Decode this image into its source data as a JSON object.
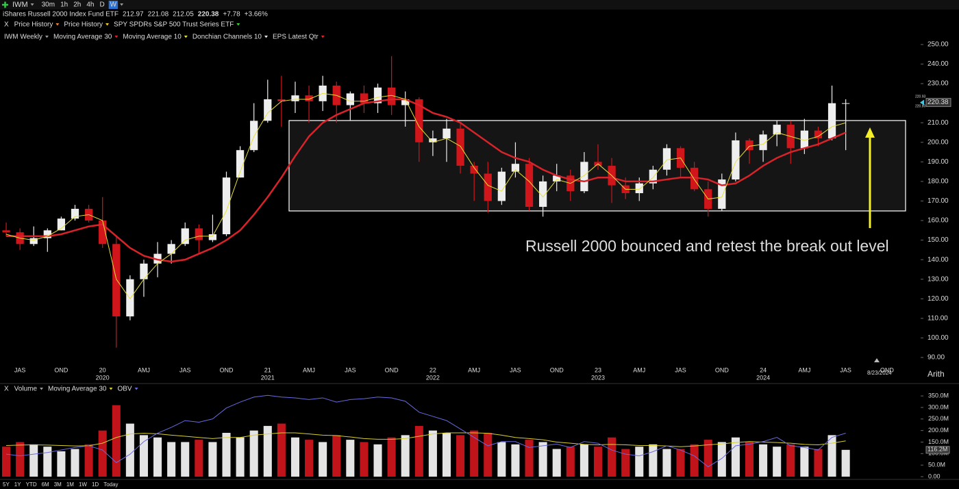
{
  "toolbar": {
    "symbol": "IWM",
    "intervals": [
      "30m",
      "1h",
      "2h",
      "4h",
      "D",
      "W"
    ]
  },
  "quote": {
    "name": "iShares Russell 2000 Index Fund ETF",
    "open": "212.97",
    "high": "221.08",
    "low": "212.05",
    "last": "220.38",
    "change": "+7.78",
    "change_pct": "+3.66%"
  },
  "overlays": {
    "close": "X",
    "items": [
      "Price History",
      "Price History",
      "SPY SPDRs S&P 500 Trust Series ETF"
    ]
  },
  "chart_data": [
    {
      "type": "candlestick",
      "title": "IWM Weekly",
      "categories": [
        null,
        null,
        null,
        null,
        null,
        null,
        null,
        null,
        null,
        null,
        null,
        null,
        null,
        null,
        null,
        null,
        null,
        null,
        null,
        null,
        null,
        null,
        null,
        null,
        null,
        null,
        null,
        null,
        null,
        null,
        null,
        null,
        null,
        null,
        null,
        null,
        null,
        null,
        null,
        null,
        null,
        null,
        null,
        null,
        null,
        null,
        null,
        null,
        null,
        null,
        null,
        null,
        null,
        null,
        null,
        null,
        null,
        null,
        null,
        null,
        null,
        null
      ],
      "open": [
        155,
        154,
        148,
        151,
        155,
        161,
        166,
        160,
        148,
        111,
        130,
        138,
        143,
        148,
        156,
        150,
        153,
        182,
        196,
        211,
        222,
        221,
        224,
        221,
        229,
        219,
        225,
        220,
        228,
        219,
        222,
        200,
        202,
        207,
        188,
        184,
        170,
        185,
        189,
        167,
        180,
        183,
        175,
        190,
        188,
        178,
        174,
        179,
        186,
        197,
        187,
        176,
        166,
        181,
        201,
        196,
        204,
        209,
        197,
        206,
        202,
        220
      ],
      "high": [
        159,
        156,
        157,
        156,
        162,
        168,
        168,
        172,
        152,
        132,
        140,
        149,
        150,
        159,
        158,
        163,
        185,
        198,
        220,
        232,
        234,
        231,
        229,
        234,
        231,
        226,
        229,
        230,
        244,
        226,
        223,
        206,
        212,
        210,
        190,
        190,
        187,
        200,
        192,
        183,
        189,
        186,
        195,
        199,
        192,
        182,
        182,
        188,
        199,
        198,
        190,
        180,
        184,
        205,
        202,
        206,
        211,
        211,
        212,
        208,
        229,
        222
      ],
      "low": [
        152,
        145,
        147,
        144,
        155,
        160,
        159,
        146,
        95,
        109,
        121,
        131,
        138,
        147,
        143,
        149,
        152,
        182,
        195,
        210,
        208,
        215,
        210,
        216,
        210,
        211,
        215,
        215,
        214,
        208,
        190,
        193,
        190,
        184,
        170,
        164,
        168,
        182,
        165,
        162,
        175,
        170,
        174,
        186,
        169,
        171,
        170,
        176,
        183,
        182,
        175,
        162,
        165,
        180,
        189,
        190,
        198,
        189,
        194,
        198,
        201,
        196
      ],
      "close": [
        154,
        148,
        151,
        155,
        161,
        166,
        160,
        148,
        111,
        130,
        138,
        143,
        148,
        156,
        150,
        153,
        182,
        196,
        211,
        222,
        221,
        224,
        221,
        229,
        219,
        225,
        220,
        228,
        219,
        222,
        200,
        202,
        207,
        188,
        184,
        170,
        185,
        189,
        167,
        180,
        183,
        175,
        190,
        188,
        178,
        174,
        179,
        186,
        197,
        187,
        176,
        166,
        181,
        201,
        196,
        204,
        209,
        197,
        206,
        202,
        220,
        220
      ],
      "up_color": "#eeeeee",
      "down_color": "#d0161b",
      "series": [
        {
          "name": "Moving Average 30",
          "color": "#d8232a",
          "values": [
            152,
            152,
            152,
            152,
            153,
            155,
            157,
            158,
            152,
            146,
            142,
            140,
            139,
            140,
            143,
            146,
            150,
            155,
            163,
            172,
            182,
            193,
            203,
            210,
            214,
            217,
            220,
            221,
            222,
            222,
            219,
            215,
            213,
            210,
            205,
            200,
            195,
            192,
            190,
            186,
            183,
            181,
            180,
            182,
            182,
            180,
            180,
            180,
            181,
            182,
            182,
            181,
            178,
            179,
            183,
            188,
            192,
            195,
            197,
            199,
            202,
            205
          ]
        },
        {
          "name": "Moving Average 10",
          "color": "#e8e03a",
          "values": [
            153,
            151,
            150,
            152,
            156,
            162,
            163,
            160,
            130,
            120,
            130,
            138,
            143,
            150,
            152,
            152,
            165,
            185,
            203,
            215,
            221,
            222,
            222,
            225,
            224,
            221,
            221,
            223,
            224,
            222,
            208,
            200,
            202,
            198,
            187,
            178,
            175,
            186,
            180,
            172,
            181,
            179,
            183,
            189,
            183,
            176,
            176,
            182,
            191,
            192,
            181,
            171,
            172,
            190,
            198,
            199,
            205,
            203,
            201,
            203,
            208,
            210
          ]
        }
      ],
      "studies": [
        {
          "name": "Donchian Channels 10",
          "color": "#e6e6e6"
        },
        {
          "name": "EPS Latest Qtr",
          "color": "#e0262b"
        }
      ],
      "xlim": [
        -0.45,
        64.9
      ],
      "ylim": [
        87,
        257
      ],
      "yticks": [
        {
          "value": 90,
          "label": "90.00"
        },
        {
          "value": 100,
          "label": "100.00"
        },
        {
          "value": 110,
          "label": "110.00"
        },
        {
          "value": 120,
          "label": "120.00"
        },
        {
          "value": 130,
          "label": "130.00"
        },
        {
          "value": 140,
          "label": "140.00"
        },
        {
          "value": 150,
          "label": "150.00"
        },
        {
          "value": 160,
          "label": "160.00"
        },
        {
          "value": 170,
          "label": "170.00"
        },
        {
          "value": 180,
          "label": "180.00"
        },
        {
          "value": 190,
          "label": "190.00"
        },
        {
          "value": 200,
          "label": "200.00"
        },
        {
          "value": 210,
          "label": "210.00"
        },
        {
          "value": 220,
          "label": "220.00"
        },
        {
          "value": 230,
          "label": "230.00"
        },
        {
          "value": 240,
          "label": "240.00"
        },
        {
          "value": 250,
          "label": "250.00"
        }
      ],
      "xticks": [
        {
          "value": 1,
          "label": "JAS"
        },
        {
          "value": 4,
          "label": "OND"
        },
        {
          "value": 7,
          "label": "20"
        },
        {
          "value": 10,
          "label": "AMJ"
        },
        {
          "value": 13,
          "label": "JAS"
        },
        {
          "value": 16,
          "label": "OND"
        },
        {
          "value": 19,
          "label": "21"
        },
        {
          "value": 22,
          "label": "AMJ"
        },
        {
          "value": 25,
          "label": "JAS"
        },
        {
          "value": 28,
          "label": "OND"
        },
        {
          "value": 31,
          "label": "22"
        },
        {
          "value": 34,
          "label": "AMJ"
        },
        {
          "value": 37,
          "label": "JAS"
        },
        {
          "value": 40,
          "label": "OND"
        },
        {
          "value": 43,
          "label": "23"
        },
        {
          "value": 46,
          "label": "AMJ"
        },
        {
          "value": 49,
          "label": "JAS"
        },
        {
          "value": 52,
          "label": "OND"
        },
        {
          "value": 55,
          "label": "24"
        },
        {
          "value": 58,
          "label": "AMJ"
        },
        {
          "value": 61,
          "label": "JAS"
        },
        {
          "value": 64,
          "label": "OND"
        }
      ],
      "xyears": [
        {
          "value": 7,
          "label": "2020"
        },
        {
          "value": 19,
          "label": "2021"
        },
        {
          "value": 31,
          "label": "2022"
        },
        {
          "value": 43,
          "label": "2023"
        },
        {
          "value": 55,
          "label": "2024"
        }
      ],
      "last_price": 220.38,
      "quote_marks": [
        "220.93",
        "220.80"
      ],
      "cursor_date": "8/23/2024",
      "annotation": "Russell 2000 bounced and retest the break out level"
    },
    {
      "type": "bar",
      "title": "Volume",
      "categories": [
        null,
        null,
        null,
        null,
        null,
        null,
        null,
        null,
        null,
        null,
        null,
        null,
        null,
        null,
        null,
        null,
        null,
        null,
        null,
        null,
        null,
        null,
        null,
        null,
        null,
        null,
        null,
        null,
        null,
        null,
        null,
        null,
        null,
        null,
        null,
        null,
        null,
        null,
        null,
        null,
        null,
        null,
        null,
        null,
        null,
        null,
        null,
        null,
        null,
        null,
        null,
        null,
        null,
        null,
        null,
        null,
        null,
        null,
        null,
        null,
        null,
        null
      ],
      "up_color": "#e4e4e4",
      "down_color": "#c0141a",
      "series": [
        {
          "name": "Volume",
          "values": [
            130,
            150,
            140,
            130,
            110,
            120,
            140,
            200,
            310,
            230,
            180,
            170,
            150,
            150,
            160,
            150,
            190,
            170,
            200,
            220,
            230,
            170,
            160,
            150,
            180,
            160,
            150,
            140,
            170,
            180,
            220,
            200,
            190,
            180,
            200,
            190,
            150,
            140,
            160,
            150,
            120,
            130,
            140,
            130,
            170,
            120,
            130,
            140,
            120,
            120,
            140,
            160,
            150,
            170,
            150,
            140,
            130,
            140,
            130,
            120,
            180,
            116.2
          ]
        },
        {
          "name": "Moving Average 30",
          "type": "line",
          "color": "#d8d030",
          "values": [
            135,
            137,
            138,
            137,
            135,
            133,
            134,
            145,
            170,
            185,
            188,
            186,
            180,
            175,
            170,
            165,
            170,
            170,
            180,
            185,
            190,
            190,
            185,
            180,
            178,
            172,
            165,
            162,
            162,
            165,
            175,
            185,
            190,
            190,
            190,
            188,
            180,
            170,
            165,
            160,
            150,
            145,
            140,
            138,
            140,
            138,
            135,
            135,
            133,
            130,
            133,
            138,
            142,
            148,
            152,
            150,
            148,
            145,
            140,
            138,
            145,
            155
          ]
        },
        {
          "name": "OBV",
          "type": "line",
          "axis": "y2",
          "color": "#6a6ae0",
          "values": [
            30,
            28,
            30,
            32,
            35,
            38,
            40,
            35,
            20,
            30,
            45,
            55,
            62,
            70,
            68,
            72,
            85,
            92,
            98,
            100,
            98,
            97,
            95,
            97,
            92,
            95,
            96,
            98,
            97,
            93,
            80,
            75,
            70,
            60,
            50,
            40,
            45,
            45,
            38,
            40,
            42,
            38,
            45,
            43,
            35,
            30,
            28,
            33,
            40,
            35,
            28,
            15,
            25,
            40,
            42,
            45,
            50,
            40,
            38,
            35,
            50,
            55
          ]
        }
      ],
      "xlim": [
        -0.45,
        64.9
      ],
      "ylim": [
        -12,
        389
      ],
      "y2lim": [
        0,
        110
      ],
      "yticks": [
        {
          "value": 0,
          "label": "0.00"
        },
        {
          "value": 50,
          "label": "50.0M"
        },
        {
          "value": 100,
          "label": "100.0M"
        },
        {
          "value": 150,
          "label": "150.0M"
        },
        {
          "value": 200,
          "label": "200.0M"
        },
        {
          "value": 250,
          "label": "250.0M"
        },
        {
          "value": 300,
          "label": "300.0M"
        },
        {
          "value": 350,
          "label": "350.0M"
        }
      ],
      "last_label": {
        "value": 116.2,
        "label": "116.2M"
      }
    }
  ],
  "ranges": [
    "5Y",
    "1Y",
    "YTD",
    "6M",
    "3M",
    "1M",
    "1W",
    "1D",
    "Today"
  ],
  "scale_mode": "Arith"
}
